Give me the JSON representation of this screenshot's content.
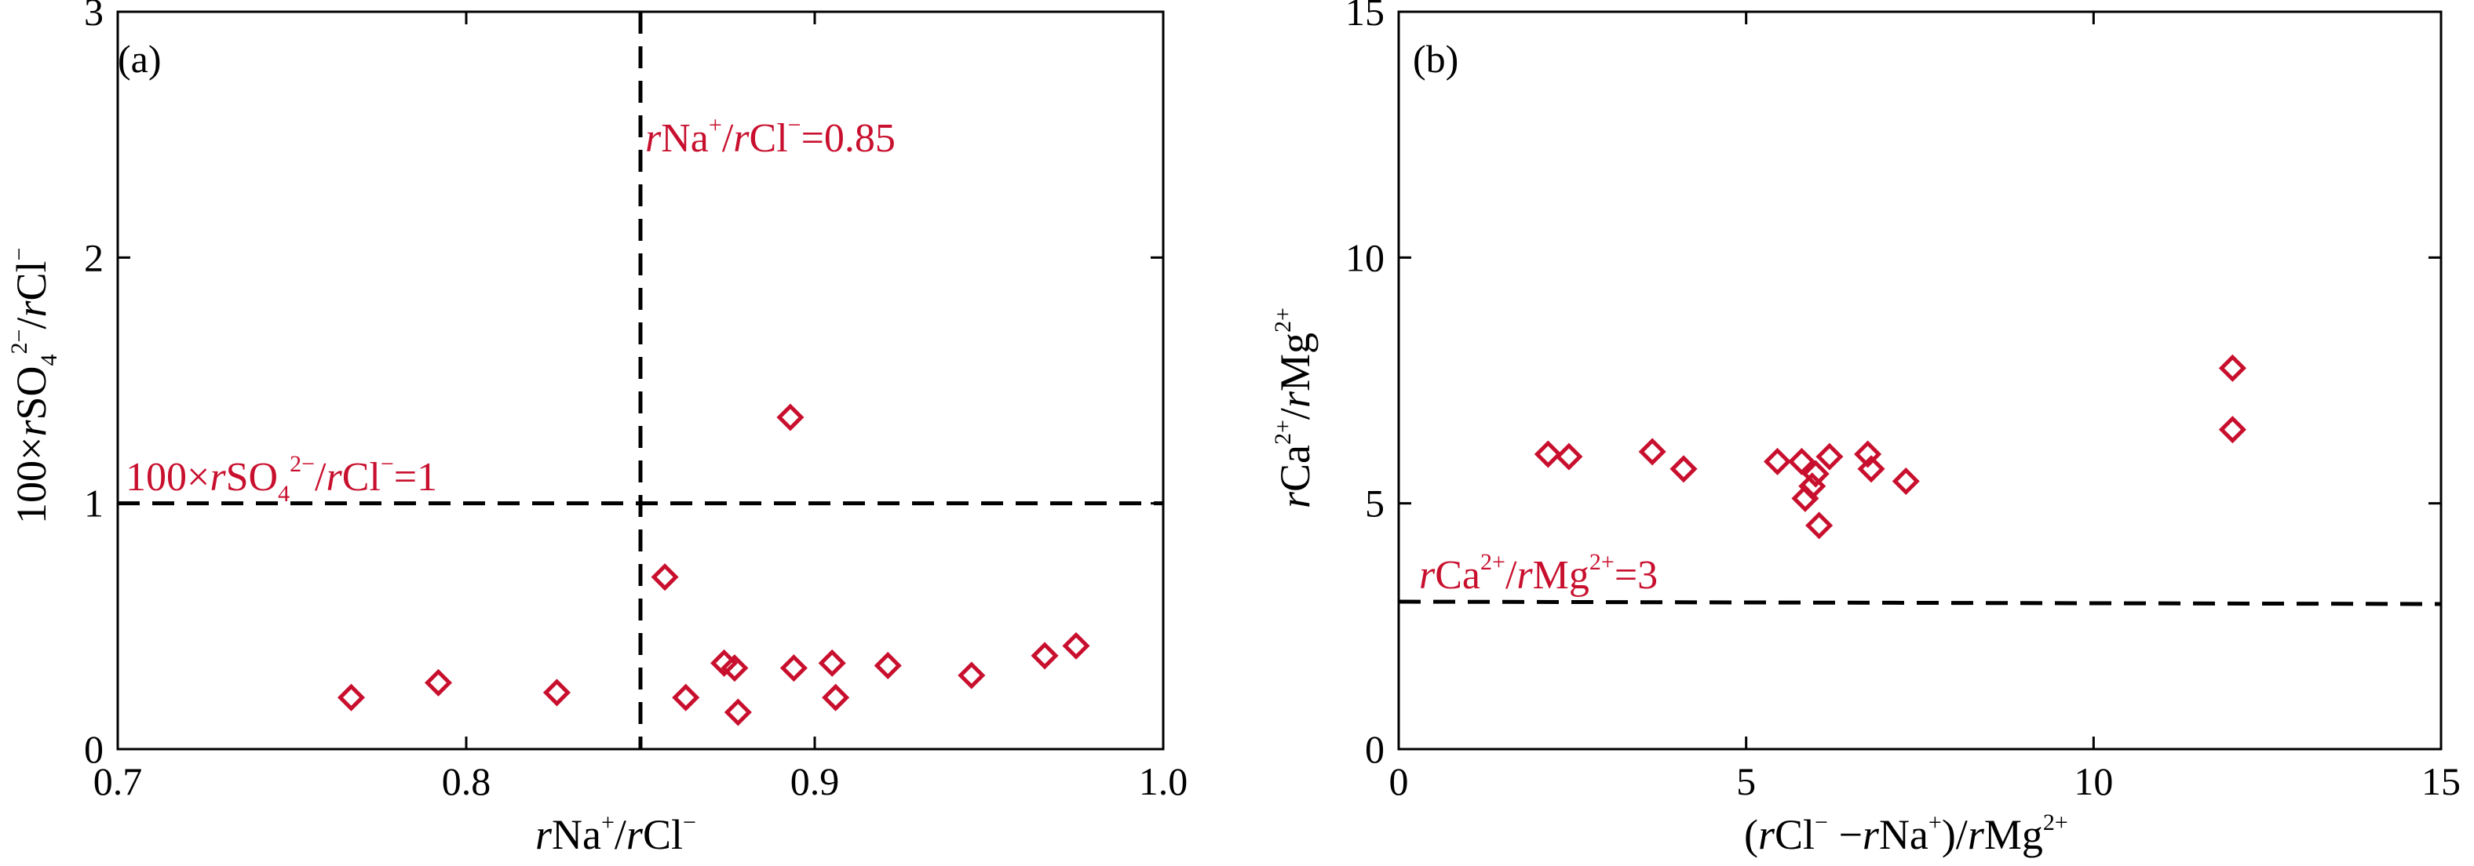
{
  "chart_data": [
    {
      "type": "scatter",
      "panel_label": "(a)",
      "xlim": [
        0.7,
        1.0
      ],
      "ylim": [
        0,
        3
      ],
      "x_ticks": [
        0.7,
        0.8,
        0.9,
        1.0
      ],
      "x_tick_labels": [
        "0.7",
        "0.8",
        "0.9",
        "1.0"
      ],
      "y_ticks": [
        0,
        1,
        2,
        3
      ],
      "y_tick_labels": [
        "0",
        "1",
        "2",
        "3"
      ],
      "xlabel": "rNa⁺/rCl⁻",
      "ylabel": "100×rSO₄²⁻/rCl⁻",
      "grid": false,
      "marker": "open-diamond",
      "marker_color": "#c8102e",
      "points": [
        {
          "x": 0.767,
          "y": 0.21
        },
        {
          "x": 0.792,
          "y": 0.27
        },
        {
          "x": 0.826,
          "y": 0.23
        },
        {
          "x": 0.857,
          "y": 0.7
        },
        {
          "x": 0.863,
          "y": 0.21
        },
        {
          "x": 0.874,
          "y": 0.35
        },
        {
          "x": 0.877,
          "y": 0.33
        },
        {
          "x": 0.878,
          "y": 0.15
        },
        {
          "x": 0.893,
          "y": 1.35
        },
        {
          "x": 0.894,
          "y": 0.33
        },
        {
          "x": 0.905,
          "y": 0.35
        },
        {
          "x": 0.906,
          "y": 0.21
        },
        {
          "x": 0.921,
          "y": 0.34
        },
        {
          "x": 0.945,
          "y": 0.3
        },
        {
          "x": 0.966,
          "y": 0.38
        },
        {
          "x": 0.975,
          "y": 0.42
        }
      ],
      "reference_lines": [
        {
          "orientation": "horizontal",
          "value": 1,
          "style": "dashed",
          "label": "100×rSO₄²⁻/rCl⁻=1"
        },
        {
          "orientation": "vertical",
          "value": 0.85,
          "style": "dashed",
          "label": "rNa⁺/rCl⁻=0.85"
        }
      ]
    },
    {
      "type": "scatter",
      "panel_label": "(b)",
      "xlim": [
        0,
        15
      ],
      "ylim": [
        0,
        15
      ],
      "x_ticks": [
        0,
        5,
        10,
        15
      ],
      "x_tick_labels": [
        "0",
        "5",
        "10",
        "15"
      ],
      "y_ticks": [
        0,
        5,
        10,
        15
      ],
      "y_tick_labels": [
        "0",
        "5",
        "10",
        "15"
      ],
      "xlabel": "(rCl⁻−rNa⁺)/rMg²⁺",
      "ylabel": "rCa²⁺/rMg²⁺",
      "grid": false,
      "marker": "open-diamond",
      "marker_color": "#c8102e",
      "points": [
        {
          "x": 2.15,
          "y": 6.0
        },
        {
          "x": 2.45,
          "y": 5.95
        },
        {
          "x": 3.65,
          "y": 6.05
        },
        {
          "x": 4.1,
          "y": 5.7
        },
        {
          "x": 5.45,
          "y": 5.85
        },
        {
          "x": 5.8,
          "y": 5.85
        },
        {
          "x": 5.85,
          "y": 5.1
        },
        {
          "x": 5.95,
          "y": 5.35
        },
        {
          "x": 6.0,
          "y": 5.6
        },
        {
          "x": 6.05,
          "y": 4.55
        },
        {
          "x": 6.2,
          "y": 5.95
        },
        {
          "x": 6.75,
          "y": 6.0
        },
        {
          "x": 6.8,
          "y": 5.7
        },
        {
          "x": 7.3,
          "y": 5.45
        },
        {
          "x": 12.0,
          "y": 7.75
        },
        {
          "x": 12.0,
          "y": 6.5
        }
      ],
      "reference_lines": [
        {
          "orientation": "horizontal",
          "value": 3,
          "style": "dashed",
          "label": "rCa²⁺/rMg²⁺=3"
        }
      ]
    }
  ]
}
